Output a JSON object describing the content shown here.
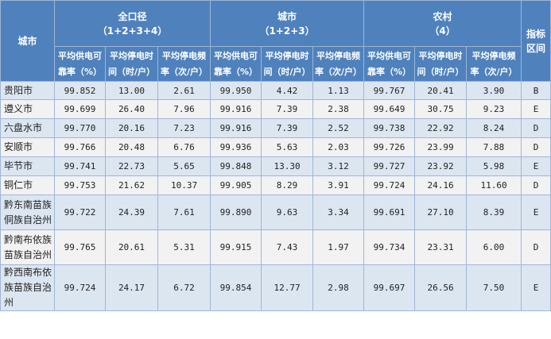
{
  "table": {
    "corner_label": "城市",
    "groups": [
      {
        "title": "全口径",
        "subtitle": "（1+2+3+4）"
      },
      {
        "title": "城市",
        "subtitle": "（1+2+3）"
      },
      {
        "title": "农村",
        "subtitle": "（4）"
      }
    ],
    "index_header": [
      "指标",
      "区间"
    ],
    "sub_headers": [
      [
        "平均供电可",
        "靠率（%）"
      ],
      [
        "平均停电时",
        "间（时/户）"
      ],
      [
        "平均停电频",
        "率（次/户）"
      ],
      [
        "平均供电可",
        "靠率（%）"
      ],
      [
        "平均停电时",
        "间（时/户）"
      ],
      [
        "平均停电频",
        "率（次/户）"
      ],
      [
        "平均供电可",
        "靠率（%）"
      ],
      [
        "平均停电时",
        "间（时/户）"
      ],
      [
        "平均停电频",
        "率（次/户）"
      ]
    ],
    "rows": [
      {
        "name": [
          "贵阳市"
        ],
        "values": [
          "99.852",
          "13.00",
          "2.61",
          "99.950",
          "4.42",
          "1.13",
          "99.767",
          "20.41",
          "3.90"
        ],
        "index": "B"
      },
      {
        "name": [
          "遵义市"
        ],
        "values": [
          "99.699",
          "26.40",
          "7.96",
          "99.916",
          "7.39",
          "2.38",
          "99.649",
          "30.75",
          "9.23"
        ],
        "index": "E"
      },
      {
        "name": [
          "六盘水市"
        ],
        "values": [
          "99.770",
          "20.16",
          "7.23",
          "99.916",
          "7.39",
          "2.52",
          "99.738",
          "22.92",
          "8.24"
        ],
        "index": "D"
      },
      {
        "name": [
          "安顺市"
        ],
        "values": [
          "99.766",
          "20.48",
          "6.76",
          "99.936",
          "5.63",
          "2.03",
          "99.726",
          "23.99",
          "7.88"
        ],
        "index": "D"
      },
      {
        "name": [
          "毕节市"
        ],
        "values": [
          "99.741",
          "22.73",
          "5.65",
          "99.848",
          "13.30",
          "3.12",
          "99.727",
          "23.92",
          "5.98"
        ],
        "index": "E"
      },
      {
        "name": [
          "铜仁市"
        ],
        "values": [
          "99.753",
          "21.62",
          "10.37",
          "99.905",
          "8.29",
          "3.91",
          "99.724",
          "24.16",
          "11.60"
        ],
        "index": "D"
      },
      {
        "name": [
          "黔东南苗族",
          "侗族自治州"
        ],
        "values": [
          "99.722",
          "24.39",
          "7.61",
          "99.890",
          "9.63",
          "3.34",
          "99.691",
          "27.10",
          "8.39"
        ],
        "index": "E"
      },
      {
        "name": [
          "黔南布依族",
          "苗族自治州"
        ],
        "values": [
          "99.765",
          "20.61",
          "5.31",
          "99.915",
          "7.43",
          "1.97",
          "99.734",
          "23.31",
          "6.00"
        ],
        "index": "D"
      },
      {
        "name": [
          "黔西南布依",
          "族苗族自治",
          "州"
        ],
        "values": [
          "99.724",
          "24.17",
          "6.72",
          "99.854",
          "12.77",
          "2.98",
          "99.697",
          "26.56",
          "7.50"
        ],
        "index": "E"
      }
    ]
  }
}
